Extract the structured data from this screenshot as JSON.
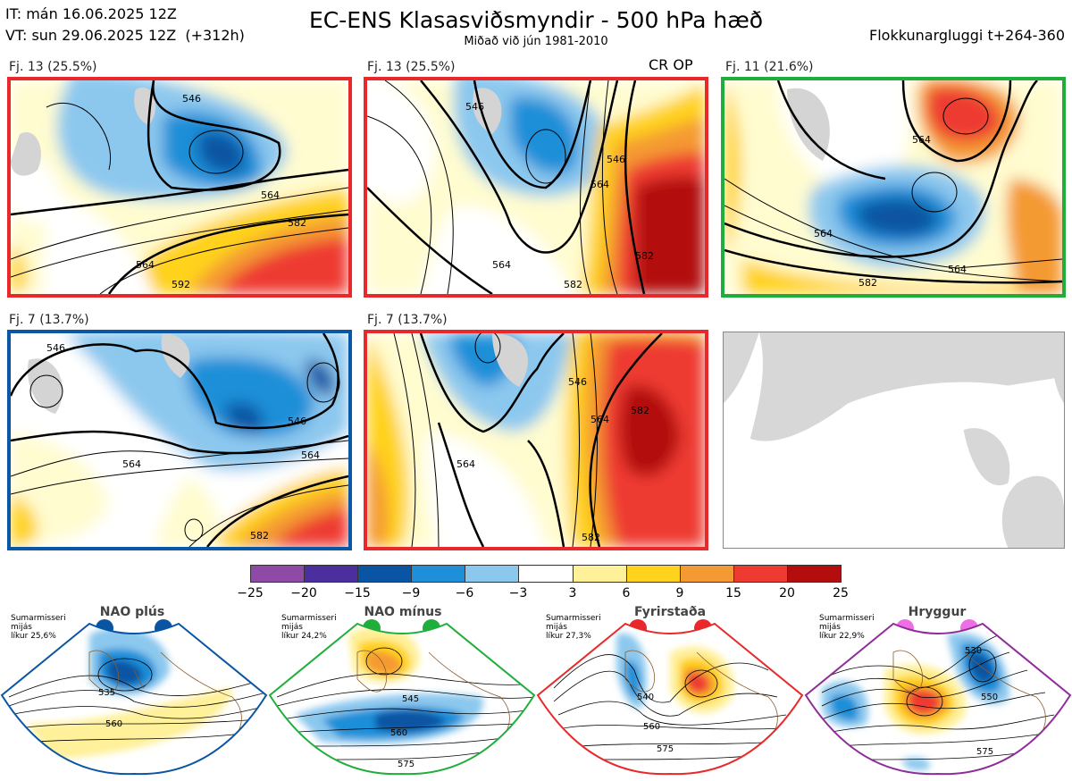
{
  "header": {
    "it_line": "IT: mán 16.06.2025 12Z",
    "vt_line": "VT: sun 29.06.2025 12Z  (+312h)",
    "title": "EC-ENS Klasasviðsmyndir - 500 hPa hæð",
    "subtitle": "Miðað við jún 1981-2010",
    "window": "Flokkunargluggi t+264-360"
  },
  "clusters": [
    {
      "label": "Fj. 13 (25.5%)",
      "frame_color": "#e8282a"
    },
    {
      "label": "Fj. 13 (25.5%)",
      "frame_color": "#e8282a",
      "extra": "CR OP"
    },
    {
      "label": "Fj. 11 (21.6%)",
      "frame_color": "#1fae3c"
    },
    {
      "label": "Fj. 7 (13.7%)",
      "frame_color": "#0a58a5"
    },
    {
      "label": "Fj. 7 (13.7%)",
      "frame_color": "#e8282a"
    }
  ],
  "contour_labels": {
    "c1": [
      "546",
      "564",
      "582",
      "564",
      "592"
    ],
    "c2": [
      "546",
      "564",
      "582",
      "546",
      "564",
      "582"
    ],
    "c3": [
      "564",
      "564",
      "582",
      "564"
    ],
    "c4": [
      "546",
      "564",
      "546",
      "564",
      "582"
    ],
    "c5": [
      "546",
      "564",
      "582",
      "564",
      "582"
    ]
  },
  "colorbar": {
    "colors": [
      "#8e4aa5",
      "#4b2f9d",
      "#0a55a3",
      "#1e8fd8",
      "#8cc8ee",
      "#ffffff",
      "#fff09a",
      "#ffd21e",
      "#f49a33",
      "#ee3b32",
      "#b30d0d"
    ],
    "ticks": [
      "−25",
      "−20",
      "−15",
      "−9",
      "−6",
      "−3",
      "3",
      "6",
      "9",
      "15",
      "20",
      "25"
    ]
  },
  "regimes": [
    {
      "name": "NAO plús",
      "stat_line1": "Sumarmisseri",
      "stat_line2": "mijás",
      "stat_line3": "líkur 25,6%",
      "dot_color": "#0a55a3",
      "frame_color": "#0a55a3",
      "labels": [
        "535",
        "560"
      ]
    },
    {
      "name": "NAO mínus",
      "stat_line1": "Sumarmisseri",
      "stat_line2": "mijás",
      "stat_line3": "líkur 24,2%",
      "dot_color": "#1fae3c",
      "frame_color": "#1fae3c",
      "labels": [
        "545",
        "560",
        "575"
      ]
    },
    {
      "name": "Fyrirstaða",
      "stat_line1": "Sumarmisseri",
      "stat_line2": "mijás",
      "stat_line3": "líkur 27,3%",
      "dot_color": "#e8282a",
      "frame_color": "#e8282a",
      "labels": [
        "540",
        "560",
        "575"
      ]
    },
    {
      "name": "Hryggur",
      "stat_line1": "Sumarmisseri",
      "stat_line2": "mijás",
      "stat_line3": "líkur 22,9%",
      "dot_color": "#ee6ee6",
      "frame_color": "#8e2c9a",
      "labels": [
        "530",
        "550",
        "575"
      ]
    }
  ]
}
